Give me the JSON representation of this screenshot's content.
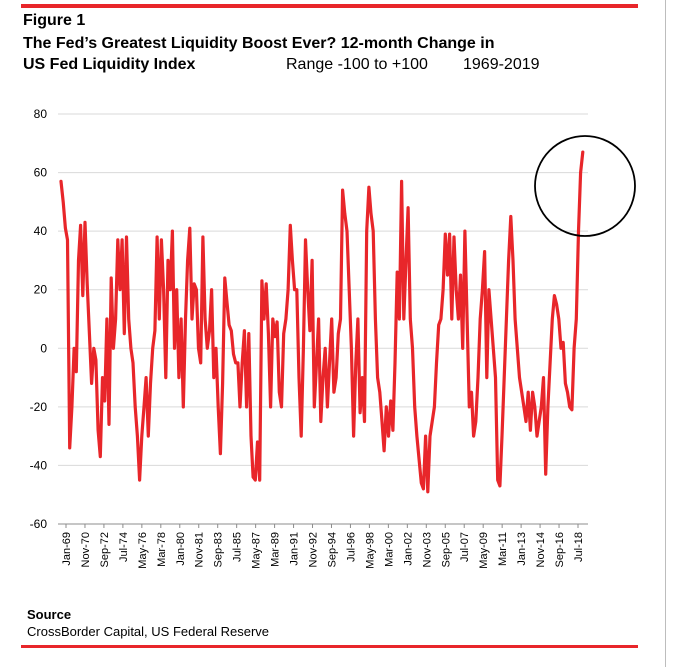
{
  "header": {
    "figure_label": "Figure 1",
    "title_line1": "The Fed’s Greatest Liquidity Boost Ever? 12-month Change in",
    "title_line2": "US Fed Liquidity Index",
    "range_text": "Range -100 to +100",
    "years_text": "1969-2019"
  },
  "footer": {
    "source_heading": "Source",
    "source_text": "CrossBorder Capital, US Federal Reserve"
  },
  "colors": {
    "line": "#e8262a",
    "rule": "#e8262a",
    "grid": "#d9d9d9",
    "annotation": "#000000"
  },
  "chart_data": {
    "type": "line",
    "title": "The Fed’s Greatest Liquidity Boost Ever? 12-month Change in US Fed Liquidity Index",
    "xlabel": "",
    "ylabel": "",
    "ylim": [
      -60,
      80
    ],
    "yticks": [
      80,
      60,
      40,
      20,
      0,
      -20,
      -40,
      -60
    ],
    "grid": true,
    "legend": "none",
    "x_tick_labels": [
      "Jan-69",
      "Nov-70",
      "Sep-72",
      "Jul-74",
      "May-76",
      "Mar-78",
      "Jan-80",
      "Nov-81",
      "Sep-83",
      "Jul-85",
      "May-87",
      "Mar-89",
      "Jan-91",
      "Nov-92",
      "Sep-94",
      "Jul-96",
      "May-98",
      "Mar-00",
      "Jan-02",
      "Nov-03",
      "Sep-05",
      "Jul-07",
      "May-09",
      "Mar-11",
      "Jan-13",
      "Nov-14",
      "Sep-16",
      "Jul-18"
    ],
    "series": [
      {
        "values": [
          [
            1969.0,
            57
          ],
          [
            1969.2,
            50
          ],
          [
            1969.4,
            41
          ],
          [
            1969.6,
            37
          ],
          [
            1969.8,
            -34
          ],
          [
            1970.0,
            -20
          ],
          [
            1970.2,
            0
          ],
          [
            1970.4,
            -8
          ],
          [
            1970.6,
            30
          ],
          [
            1970.8,
            42
          ],
          [
            1971.0,
            18
          ],
          [
            1971.2,
            43
          ],
          [
            1971.4,
            22
          ],
          [
            1971.6,
            5
          ],
          [
            1971.8,
            -12
          ],
          [
            1972.0,
            0
          ],
          [
            1972.2,
            -4
          ],
          [
            1972.4,
            -28
          ],
          [
            1972.6,
            -37
          ],
          [
            1972.8,
            -10
          ],
          [
            1973.0,
            -18
          ],
          [
            1973.2,
            10
          ],
          [
            1973.4,
            -26
          ],
          [
            1973.6,
            24
          ],
          [
            1973.8,
            0
          ],
          [
            1974.0,
            10
          ],
          [
            1974.2,
            37
          ],
          [
            1974.4,
            20
          ],
          [
            1974.6,
            37
          ],
          [
            1974.8,
            5
          ],
          [
            1975.0,
            38
          ],
          [
            1975.2,
            10
          ],
          [
            1975.4,
            0
          ],
          [
            1975.6,
            -5
          ],
          [
            1975.8,
            -20
          ],
          [
            1976.0,
            -30
          ],
          [
            1976.2,
            -45
          ],
          [
            1976.4,
            -30
          ],
          [
            1976.6,
            -20
          ],
          [
            1976.8,
            -10
          ],
          [
            1977.0,
            -30
          ],
          [
            1977.2,
            -12
          ],
          [
            1977.4,
            0
          ],
          [
            1977.6,
            6
          ],
          [
            1977.8,
            38
          ],
          [
            1978.0,
            10
          ],
          [
            1978.2,
            37
          ],
          [
            1978.4,
            20
          ],
          [
            1978.6,
            -10
          ],
          [
            1978.8,
            30
          ],
          [
            1979.0,
            20
          ],
          [
            1979.2,
            40
          ],
          [
            1979.4,
            0
          ],
          [
            1979.6,
            20
          ],
          [
            1979.8,
            -10
          ],
          [
            1980.0,
            10
          ],
          [
            1980.2,
            -20
          ],
          [
            1980.4,
            10
          ],
          [
            1980.6,
            30
          ],
          [
            1980.8,
            41
          ],
          [
            1981.0,
            10
          ],
          [
            1981.2,
            22
          ],
          [
            1981.4,
            20
          ],
          [
            1981.6,
            0
          ],
          [
            1981.8,
            -5
          ],
          [
            1982.0,
            38
          ],
          [
            1982.2,
            10
          ],
          [
            1982.4,
            0
          ],
          [
            1982.6,
            6
          ],
          [
            1982.8,
            20
          ],
          [
            1983.0,
            -10
          ],
          [
            1983.2,
            0
          ],
          [
            1983.4,
            -20
          ],
          [
            1983.6,
            -36
          ],
          [
            1983.8,
            -12
          ],
          [
            1984.0,
            24
          ],
          [
            1984.2,
            16
          ],
          [
            1984.4,
            8
          ],
          [
            1984.6,
            6
          ],
          [
            1984.8,
            -2
          ],
          [
            1985.0,
            -5
          ],
          [
            1985.2,
            -5
          ],
          [
            1985.4,
            -20
          ],
          [
            1985.6,
            -5
          ],
          [
            1985.8,
            6
          ],
          [
            1986.0,
            -20
          ],
          [
            1986.2,
            5
          ],
          [
            1986.4,
            -30
          ],
          [
            1986.6,
            -44
          ],
          [
            1986.8,
            -45
          ],
          [
            1987.0,
            -32
          ],
          [
            1987.2,
            -45
          ],
          [
            1987.4,
            23
          ],
          [
            1987.6,
            10
          ],
          [
            1987.8,
            22
          ],
          [
            1988.0,
            5
          ],
          [
            1988.2,
            -20
          ],
          [
            1988.4,
            10
          ],
          [
            1988.6,
            4
          ],
          [
            1988.8,
            9
          ],
          [
            1989.0,
            -15
          ],
          [
            1989.2,
            -20
          ],
          [
            1989.4,
            5
          ],
          [
            1989.6,
            10
          ],
          [
            1989.8,
            20
          ],
          [
            1990.0,
            42
          ],
          [
            1990.2,
            30
          ],
          [
            1990.4,
            20
          ],
          [
            1990.6,
            20
          ],
          [
            1990.8,
            -10
          ],
          [
            1991.0,
            -30
          ],
          [
            1991.2,
            0
          ],
          [
            1991.4,
            37
          ],
          [
            1991.6,
            20
          ],
          [
            1991.8,
            6
          ],
          [
            1992.0,
            30
          ],
          [
            1992.2,
            -20
          ],
          [
            1992.4,
            -5
          ],
          [
            1992.6,
            10
          ],
          [
            1992.8,
            -25
          ],
          [
            1993.0,
            -10
          ],
          [
            1993.2,
            0
          ],
          [
            1993.4,
            -20
          ],
          [
            1993.6,
            -5
          ],
          [
            1993.8,
            10
          ],
          [
            1994.0,
            -15
          ],
          [
            1994.2,
            -10
          ],
          [
            1994.4,
            5
          ],
          [
            1994.6,
            10
          ],
          [
            1994.8,
            54
          ],
          [
            1995.0,
            46
          ],
          [
            1995.2,
            40
          ],
          [
            1995.4,
            20
          ],
          [
            1995.6,
            0
          ],
          [
            1995.8,
            -30
          ],
          [
            1996.0,
            -5
          ],
          [
            1996.2,
            10
          ],
          [
            1996.4,
            -22
          ],
          [
            1996.6,
            -10
          ],
          [
            1996.8,
            -25
          ],
          [
            1997.0,
            40
          ],
          [
            1997.2,
            55
          ],
          [
            1997.4,
            46
          ],
          [
            1997.6,
            40
          ],
          [
            1997.8,
            10
          ],
          [
            1998.0,
            -10
          ],
          [
            1998.2,
            -15
          ],
          [
            1998.4,
            -25
          ],
          [
            1998.6,
            -35
          ],
          [
            1998.8,
            -20
          ],
          [
            1999.0,
            -30
          ],
          [
            1999.2,
            -18
          ],
          [
            1999.4,
            -28
          ],
          [
            1999.6,
            -5
          ],
          [
            1999.8,
            26
          ],
          [
            2000.0,
            10
          ],
          [
            2000.2,
            57
          ],
          [
            2000.4,
            10
          ],
          [
            2000.6,
            30
          ],
          [
            2000.8,
            48
          ],
          [
            2001.0,
            10
          ],
          [
            2001.2,
            0
          ],
          [
            2001.4,
            -20
          ],
          [
            2001.6,
            -30
          ],
          [
            2001.8,
            -38
          ],
          [
            2002.0,
            -46
          ],
          [
            2002.2,
            -48
          ],
          [
            2002.4,
            -30
          ],
          [
            2002.6,
            -49
          ],
          [
            2002.8,
            -30
          ],
          [
            2003.0,
            -25
          ],
          [
            2003.2,
            -20
          ],
          [
            2003.4,
            -5
          ],
          [
            2003.6,
            8
          ],
          [
            2003.8,
            10
          ],
          [
            2004.0,
            20
          ],
          [
            2004.2,
            39
          ],
          [
            2004.4,
            25
          ],
          [
            2004.6,
            39
          ],
          [
            2004.8,
            10
          ],
          [
            2005.0,
            38
          ],
          [
            2005.2,
            20
          ],
          [
            2005.4,
            10
          ],
          [
            2005.6,
            25
          ],
          [
            2005.8,
            0
          ],
          [
            2006.0,
            40
          ],
          [
            2006.2,
            10
          ],
          [
            2006.4,
            -20
          ],
          [
            2006.6,
            -15
          ],
          [
            2006.8,
            -30
          ],
          [
            2007.0,
            -25
          ],
          [
            2007.2,
            -10
          ],
          [
            2007.4,
            10
          ],
          [
            2007.6,
            20
          ],
          [
            2007.8,
            33
          ],
          [
            2008.0,
            -10
          ],
          [
            2008.2,
            20
          ],
          [
            2008.4,
            10
          ],
          [
            2008.6,
            0
          ],
          [
            2008.8,
            -10
          ],
          [
            2009.0,
            -45
          ],
          [
            2009.2,
            -47
          ],
          [
            2009.4,
            -30
          ],
          [
            2009.6,
            -10
          ],
          [
            2009.8,
            10
          ],
          [
            2010.0,
            30
          ],
          [
            2010.2,
            45
          ],
          [
            2010.4,
            30
          ],
          [
            2010.6,
            10
          ],
          [
            2010.8,
            0
          ],
          [
            2011.0,
            -10
          ],
          [
            2011.2,
            -15
          ],
          [
            2011.4,
            -20
          ],
          [
            2011.6,
            -25
          ],
          [
            2011.8,
            -15
          ],
          [
            2012.0,
            -28
          ],
          [
            2012.2,
            -15
          ],
          [
            2012.4,
            -20
          ],
          [
            2012.6,
            -30
          ],
          [
            2012.8,
            -25
          ],
          [
            2013.0,
            -20
          ],
          [
            2013.2,
            -10
          ],
          [
            2013.4,
            -43
          ],
          [
            2013.6,
            -20
          ],
          [
            2013.8,
            -5
          ],
          [
            2014.0,
            10
          ],
          [
            2014.2,
            18
          ],
          [
            2014.4,
            15
          ],
          [
            2014.6,
            10
          ],
          [
            2014.8,
            0
          ],
          [
            2015.0,
            2
          ],
          [
            2015.2,
            -12
          ],
          [
            2015.4,
            -15
          ],
          [
            2015.6,
            -20
          ],
          [
            2015.8,
            -21
          ],
          [
            2016.0,
            0
          ],
          [
            2016.2,
            10
          ],
          [
            2016.4,
            40
          ],
          [
            2016.6,
            60
          ],
          [
            2016.8,
            67
          ]
        ]
      }
    ]
  },
  "annotation": {
    "type": "circle",
    "note": "highlight latest surge"
  }
}
